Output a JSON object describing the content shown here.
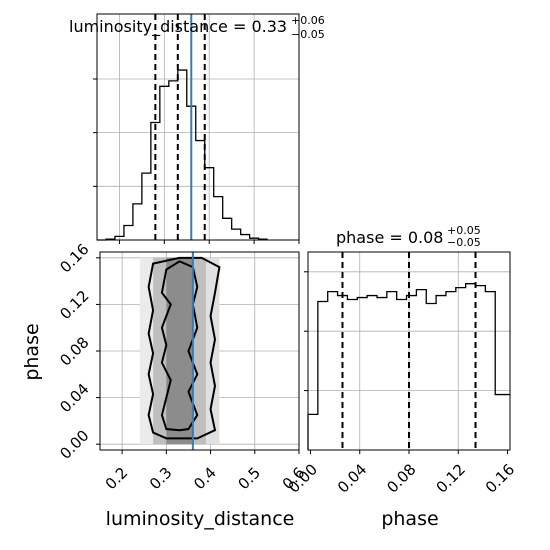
{
  "chart_data": {
    "type": "corner",
    "parameters": [
      "luminosity_distance",
      "phase"
    ],
    "truth": {
      "luminosity_distance": 0.36,
      "color": "#3a7ab4"
    },
    "panels": [
      {
        "id": "luminosity_distance_hist",
        "type": "histogram",
        "title": {
          "base": "luminosity_distance = 0.33",
          "sup": "+0.06",
          "sub": "−0.05"
        },
        "xlim": [
          0.15,
          0.6
        ],
        "bin_edges": [
          0.15,
          0.17,
          0.19,
          0.21,
          0.23,
          0.25,
          0.27,
          0.29,
          0.31,
          0.33,
          0.35,
          0.37,
          0.39,
          0.41,
          0.43,
          0.45,
          0.47,
          0.49,
          0.51,
          0.53
        ],
        "counts": [
          0,
          0.005,
          0.02,
          0.08,
          0.2,
          0.37,
          0.65,
          0.85,
          0.88,
          0.94,
          0.74,
          0.55,
          0.4,
          0.24,
          0.12,
          0.06,
          0.03,
          0.01,
          0.005
        ],
        "ymax": 1.0,
        "quantiles": [
          0.28,
          0.33,
          0.39
        ]
      },
      {
        "id": "phase_hist",
        "type": "histogram",
        "title": {
          "base": "phase = 0.08",
          "sup": "+0.05",
          "sub": "−0.05"
        },
        "xlim": [
          -0.002,
          0.162
        ],
        "bin_edges": [
          -0.002,
          0.006,
          0.014,
          0.022,
          0.03,
          0.038,
          0.046,
          0.054,
          0.062,
          0.07,
          0.078,
          0.086,
          0.094,
          0.102,
          0.11,
          0.118,
          0.126,
          0.134,
          0.142,
          0.15,
          0.158,
          0.162
        ],
        "counts": [
          0.18,
          0.75,
          0.8,
          0.78,
          0.76,
          0.77,
          0.78,
          0.77,
          0.8,
          0.76,
          0.78,
          0.81,
          0.74,
          0.78,
          0.8,
          0.82,
          0.84,
          0.83,
          0.8,
          0.28,
          0.28
        ],
        "ymax": 1.0,
        "quantiles": [
          0.026,
          0.08,
          0.134
        ],
        "xticks": [
          "0.00",
          "0.04",
          "0.08",
          "0.12",
          "0.16"
        ]
      },
      {
        "id": "joint_2d",
        "type": "contour",
        "xlabel": "luminosity_distance",
        "ylabel": "phase",
        "xlim": [
          0.15,
          0.6
        ],
        "ylim": [
          -0.005,
          0.165
        ],
        "xticks": [
          "0.2",
          "0.3",
          "0.4",
          "0.5",
          "0.6"
        ],
        "yticks": [
          "0.00",
          "0.04",
          "0.08",
          "0.12",
          "0.16"
        ],
        "contour_levels": [
          {
            "x": [
              0.33,
              0.3,
              0.29,
              0.31,
              0.29,
              0.3,
              0.29,
              0.31,
              0.3,
              0.29,
              0.3,
              0.33,
              0.35,
              0.37,
              0.35,
              0.37,
              0.35,
              0.37,
              0.36,
              0.37,
              0.36,
              0.33
            ],
            "y": [
              0.157,
              0.15,
              0.13,
              0.12,
              0.1,
              0.085,
              0.07,
              0.055,
              0.04,
              0.025,
              0.013,
              0.012,
              0.013,
              0.025,
              0.045,
              0.06,
              0.08,
              0.1,
              0.12,
              0.135,
              0.152,
              0.157
            ]
          },
          {
            "x": [
              0.33,
              0.27,
              0.26,
              0.27,
              0.26,
              0.27,
              0.26,
              0.27,
              0.26,
              0.27,
              0.3,
              0.37,
              0.41,
              0.4,
              0.41,
              0.4,
              0.41,
              0.4,
              0.41,
              0.42,
              0.38,
              0.33
            ],
            "y": [
              0.16,
              0.155,
              0.135,
              0.115,
              0.095,
              0.078,
              0.06,
              0.043,
              0.025,
              0.01,
              0.005,
              0.005,
              0.012,
              0.03,
              0.05,
              0.07,
              0.09,
              0.11,
              0.13,
              0.152,
              0.16,
              0.16
            ]
          }
        ],
        "density_cells": [
          {
            "x0": 0.27,
            "x1": 0.3,
            "y0": 0.0,
            "y1": 0.16,
            "level": 0.25
          },
          {
            "x0": 0.3,
            "x1": 0.36,
            "y0": 0.0,
            "y1": 0.16,
            "level": 0.45
          },
          {
            "x0": 0.36,
            "x1": 0.39,
            "y0": 0.0,
            "y1": 0.16,
            "level": 0.25
          },
          {
            "x0": 0.39,
            "x1": 0.42,
            "y0": 0.0,
            "y1": 0.16,
            "level": 0.12
          },
          {
            "x0": 0.24,
            "x1": 0.27,
            "y0": 0.0,
            "y1": 0.16,
            "level": 0.08
          }
        ]
      }
    ]
  }
}
